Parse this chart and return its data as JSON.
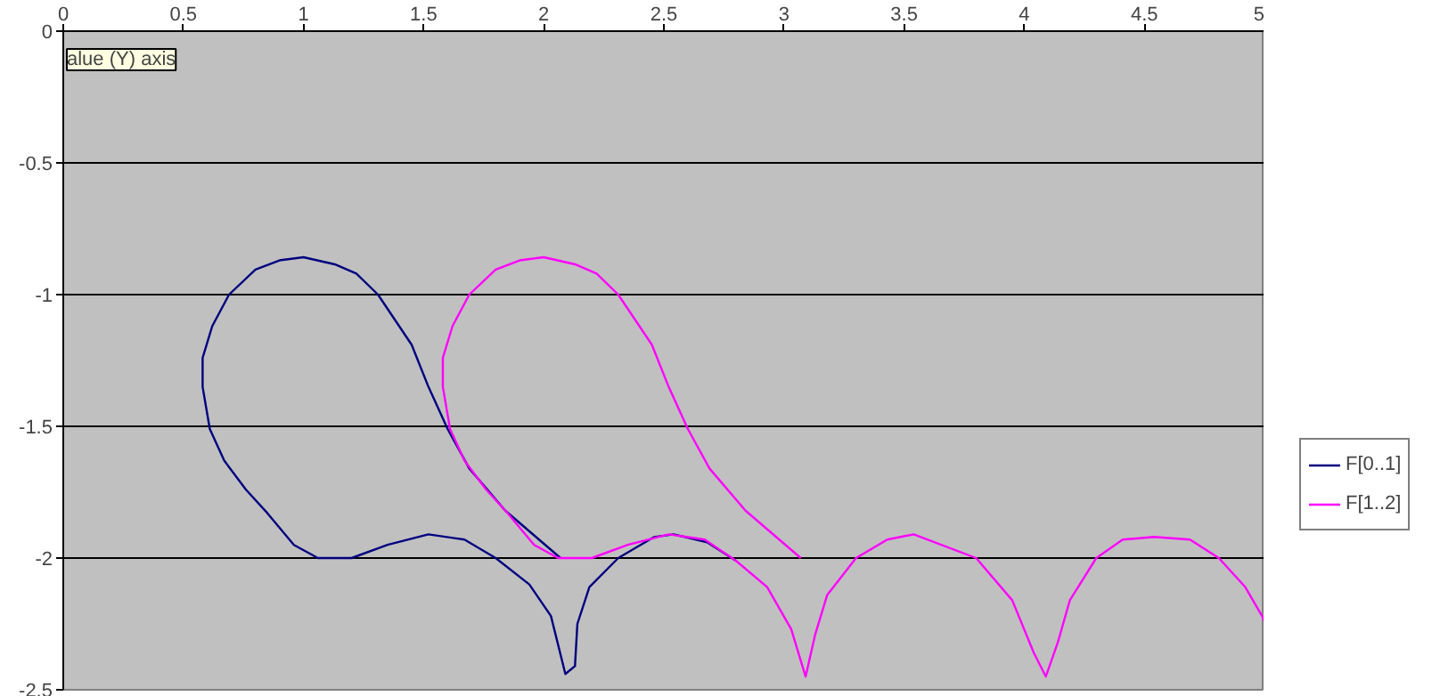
{
  "chart_data": {
    "type": "line",
    "xlim": [
      0,
      5
    ],
    "xticks": [
      0,
      0.5,
      1,
      1.5,
      2,
      2.5,
      3,
      3.5,
      4,
      4.5,
      5
    ],
    "ylim": [
      -2.5,
      0
    ],
    "yticks": [
      0,
      -0.5,
      -1,
      -1.5,
      -2,
      -2.5
    ],
    "grid": "y",
    "legend": "right",
    "marker": "none",
    "line_style": "solid",
    "annotations": [
      "alue (Y) axis"
    ],
    "series": [
      {
        "name": "F[0..1]",
        "color": "#000080",
        "x": [
          2.07,
          1.84,
          1.69,
          1.6,
          1.52,
          1.45,
          1.31,
          1.22,
          1.13,
          1.0,
          0.9,
          0.8,
          0.69,
          0.62,
          0.58,
          0.58,
          0.61,
          0.67,
          0.76,
          0.85,
          0.96,
          1.06,
          1.2,
          1.35,
          1.52,
          1.67,
          1.8,
          1.94,
          2.03,
          2.09,
          2.13,
          2.14,
          2.19,
          2.31,
          2.46,
          2.54,
          2.68,
          2.8
        ],
        "values": [
          -2.0,
          -1.82,
          -1.66,
          -1.51,
          -1.35,
          -1.19,
          -1.0,
          -0.92,
          -0.885,
          -0.858,
          -0.87,
          -0.905,
          -1.0,
          -1.12,
          -1.24,
          -1.35,
          -1.51,
          -1.63,
          -1.74,
          -1.83,
          -1.95,
          -2.0,
          -2.0,
          -1.95,
          -1.91,
          -1.93,
          -2.0,
          -2.1,
          -2.22,
          -2.44,
          -2.41,
          -2.25,
          -2.11,
          -2.0,
          -1.92,
          -1.91,
          -1.94,
          -2.01
        ]
      },
      {
        "name": "F[1..2]",
        "color": "#ff00ff",
        "x": [
          3.07,
          2.84,
          2.69,
          2.6,
          2.52,
          2.45,
          2.31,
          2.22,
          2.13,
          2.0,
          1.9,
          1.8,
          1.69,
          1.62,
          1.58,
          1.58,
          1.61,
          1.67,
          1.76,
          1.85,
          1.96,
          2.06,
          2.2,
          2.35,
          2.52,
          2.67,
          2.8,
          2.93,
          3.03,
          3.09,
          3.13,
          3.18,
          3.3,
          3.43,
          3.54,
          3.8,
          3.95,
          4.04,
          4.09,
          4.14,
          4.19,
          4.3,
          4.41,
          4.54,
          4.69,
          4.81,
          4.92,
          4.99,
          5.0
        ],
        "values": [
          -2.0,
          -1.82,
          -1.66,
          -1.51,
          -1.35,
          -1.19,
          -1.0,
          -0.92,
          -0.885,
          -0.858,
          -0.87,
          -0.905,
          -1.0,
          -1.12,
          -1.24,
          -1.35,
          -1.51,
          -1.63,
          -1.74,
          -1.83,
          -1.95,
          -2.0,
          -2.0,
          -1.95,
          -1.91,
          -1.93,
          -2.01,
          -2.11,
          -2.27,
          -2.45,
          -2.29,
          -2.14,
          -2.0,
          -1.93,
          -1.91,
          -2.0,
          -2.16,
          -2.36,
          -2.45,
          -2.32,
          -2.16,
          -2.0,
          -1.93,
          -1.92,
          -1.93,
          -2.0,
          -2.11,
          -2.22,
          -2.24
        ]
      }
    ]
  }
}
